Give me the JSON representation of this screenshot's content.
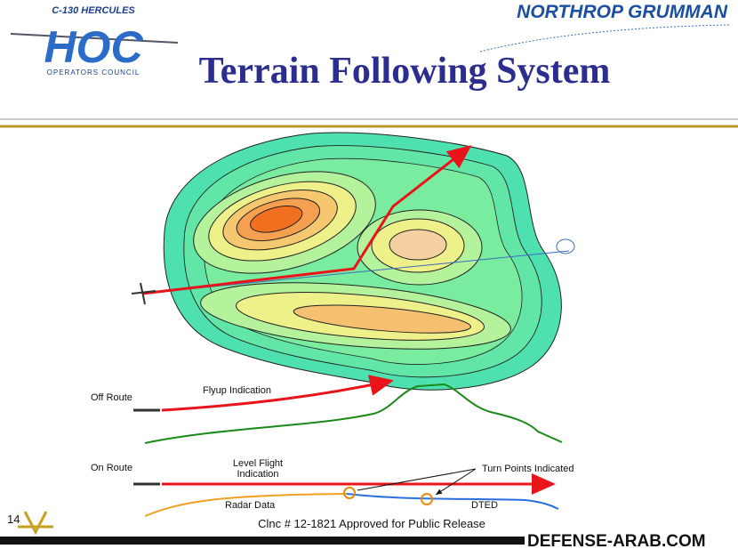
{
  "header": {
    "logo": {
      "line1": "C-130 HERCULES",
      "emblem": "HOC",
      "line2": "OPERATORS COUNCIL"
    },
    "company": "NORTHROP GRUMMAN",
    "title": "Terrain Following System"
  },
  "diagram": {
    "off_route": {
      "label": "Off Route",
      "indication": "Flyup Indication"
    },
    "on_route": {
      "label": "On Route",
      "indication": [
        "Level Flight",
        "Indication"
      ],
      "turn_points": "Turn Points Indicated",
      "radar": "Radar Data",
      "dted": "DTED"
    }
  },
  "footer": {
    "page": "14",
    "clearance": "Clnc # 12-1821 Approved for Public Release",
    "watermark": "DEFENSE-ARAB.COM"
  }
}
